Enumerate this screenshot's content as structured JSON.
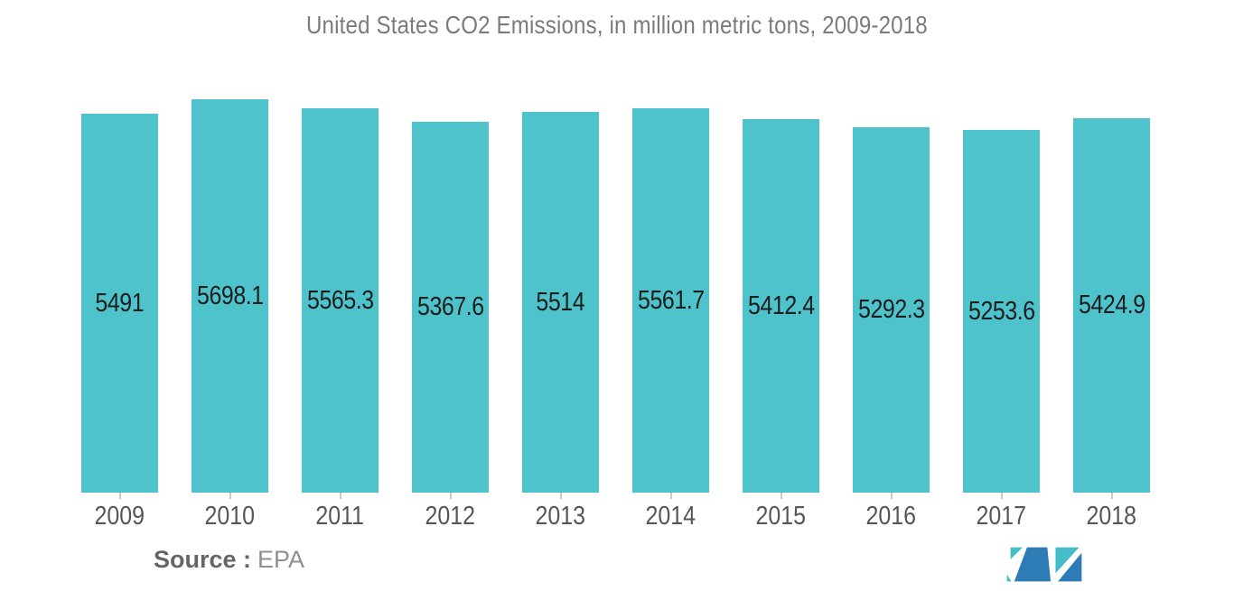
{
  "title": "United States CO2 Emissions, in million metric tons, 2009-2018",
  "source": {
    "label": "Source :",
    "value": "EPA"
  },
  "colors": {
    "bar": "#4ec3cb",
    "title_text": "#7b7b7b",
    "value_label_text": "#1d1d1d",
    "axis_label_text": "#565656",
    "tick": "#c9c9c9",
    "source_label_text": "#666666",
    "source_value_text": "#8f8f8f",
    "logo_blue": "#2d7cb5",
    "logo_teal": "#45bdc9"
  },
  "logo": {
    "name": "mordor-intelligence-logo"
  },
  "chart_data": {
    "type": "bar",
    "title": "United States CO2 Emissions, in million metric tons, 2009-2018",
    "categories": [
      "2009",
      "2010",
      "2011",
      "2012",
      "2013",
      "2014",
      "2015",
      "2016",
      "2017",
      "2018"
    ],
    "values": [
      5491,
      5698.1,
      5565.3,
      5367.6,
      5514,
      5561.7,
      5412.4,
      5292.3,
      5253.6,
      5424.9
    ],
    "xlabel": "",
    "ylabel": "million metric tons",
    "ylim": [
      0,
      5700
    ],
    "grid": false,
    "legend": false,
    "data_labels": "inside-center",
    "bar_color": "#4ec3cb"
  }
}
